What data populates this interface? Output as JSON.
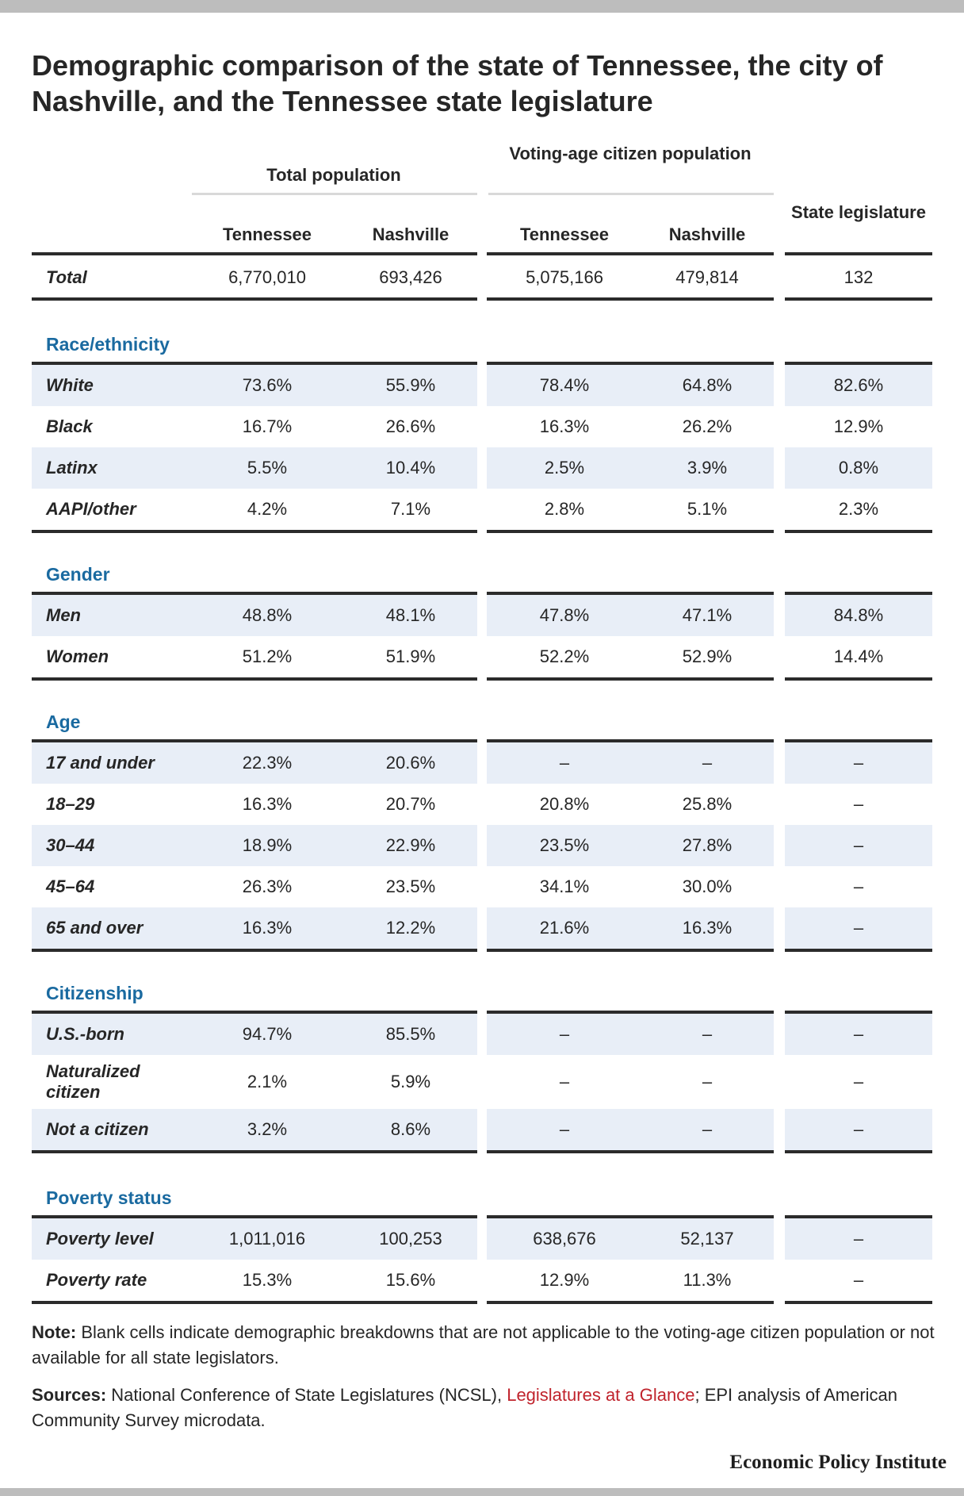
{
  "title": "Demographic comparison of the state of Tennessee, the city of Nashville, and the Tennessee state legislature",
  "chart_data": {
    "type": "table",
    "groups": [
      "Total population",
      "Voting-age citizen population"
    ],
    "columns": [
      "Tennessee",
      "Nashville",
      "Tennessee",
      "Nashville",
      "State legislature"
    ],
    "total": {
      "label": "Total",
      "values": [
        "6,770,010",
        "693,426",
        "5,075,166",
        "479,814",
        "132"
      ]
    },
    "sections": [
      {
        "name": "Race/ethnicity",
        "rows": [
          {
            "label": "White",
            "values": [
              "73.6%",
              "55.9%",
              "78.4%",
              "64.8%",
              "82.6%"
            ]
          },
          {
            "label": "Black",
            "values": [
              "16.7%",
              "26.6%",
              "16.3%",
              "26.2%",
              "12.9%"
            ]
          },
          {
            "label": "Latinx",
            "values": [
              "5.5%",
              "10.4%",
              "2.5%",
              "3.9%",
              "0.8%"
            ]
          },
          {
            "label": "AAPI/other",
            "values": [
              "4.2%",
              "7.1%",
              "2.8%",
              "5.1%",
              "2.3%"
            ]
          }
        ]
      },
      {
        "name": "Gender",
        "rows": [
          {
            "label": "Men",
            "values": [
              "48.8%",
              "48.1%",
              "47.8%",
              "47.1%",
              "84.8%"
            ]
          },
          {
            "label": "Women",
            "values": [
              "51.2%",
              "51.9%",
              "52.2%",
              "52.9%",
              "14.4%"
            ]
          }
        ]
      },
      {
        "name": "Age",
        "rows": [
          {
            "label": "17 and under",
            "values": [
              "22.3%",
              "20.6%",
              "–",
              "–",
              "–"
            ]
          },
          {
            "label": "18–29",
            "values": [
              "16.3%",
              "20.7%",
              "20.8%",
              "25.8%",
              "–"
            ]
          },
          {
            "label": "30–44",
            "values": [
              "18.9%",
              "22.9%",
              "23.5%",
              "27.8%",
              "–"
            ]
          },
          {
            "label": "45–64",
            "values": [
              "26.3%",
              "23.5%",
              "34.1%",
              "30.0%",
              "–"
            ]
          },
          {
            "label": "65 and over",
            "values": [
              "16.3%",
              "12.2%",
              "21.6%",
              "16.3%",
              "–"
            ]
          }
        ]
      },
      {
        "name": "Citizenship",
        "rows": [
          {
            "label": "U.S.-born",
            "values": [
              "94.7%",
              "85.5%",
              "–",
              "–",
              "–"
            ]
          },
          {
            "label": "Naturalized citizen",
            "values": [
              "2.1%",
              "5.9%",
              "–",
              "–",
              "–"
            ]
          },
          {
            "label": "Not a citizen",
            "values": [
              "3.2%",
              "8.6%",
              "–",
              "–",
              "–"
            ]
          }
        ]
      },
      {
        "name": "Poverty status",
        "rows": [
          {
            "label": "Poverty level",
            "values": [
              "1,011,016",
              "100,253",
              "638,676",
              "52,137",
              "–"
            ]
          },
          {
            "label": "Poverty rate",
            "values": [
              "15.3%",
              "15.6%",
              "12.9%",
              "11.3%",
              "–"
            ]
          }
        ]
      }
    ]
  },
  "note": {
    "label": "Note:",
    "text": "Blank cells indicate demographic breakdowns that are not applicable to the voting-age citizen population or not available for all state legislators."
  },
  "sources": {
    "label": "Sources:",
    "text_before": "National Conference of State Legislatures (NCSL), ",
    "link": "Legislatures at a Glance",
    "text_after": "; EPI analysis of American Community Survey microdata."
  },
  "brand": "Economic Policy Institute",
  "colors": {
    "section": "#1a6aa0",
    "shade": "#e8eef7",
    "link": "#c0232c"
  }
}
